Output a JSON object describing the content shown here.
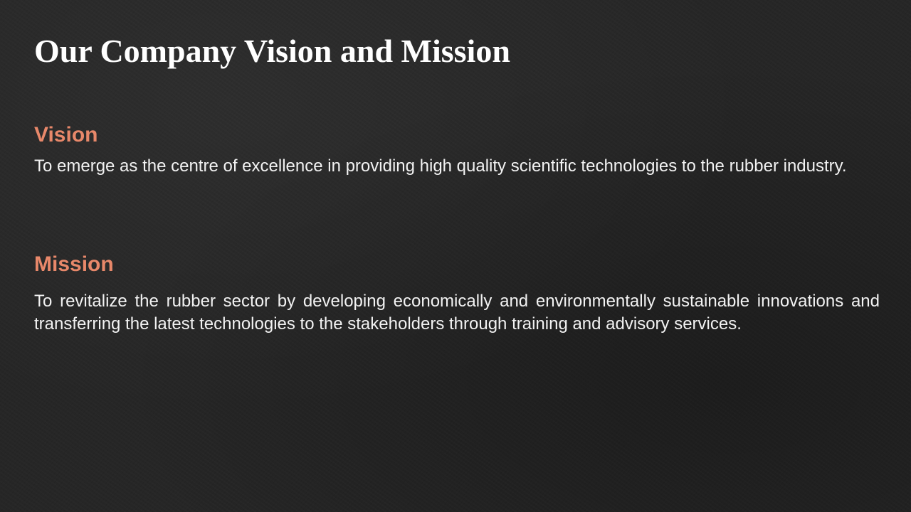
{
  "slide": {
    "title": "Our Company Vision and Mission"
  },
  "vision": {
    "heading": "Vision",
    "body": "To emerge as the centre of excellence in providing high quality scientific technologies to the rubber industry."
  },
  "mission": {
    "heading": "Mission",
    "body": "To revitalize the rubber sector by developing economically and environmentally sustainable innovations and transferring the latest technologies to the stakeholders through training and advisory services."
  },
  "colors": {
    "background": "#262626",
    "title": "#ffffff",
    "heading_accent": "#e8886a",
    "body_text": "#f2f2f2"
  }
}
